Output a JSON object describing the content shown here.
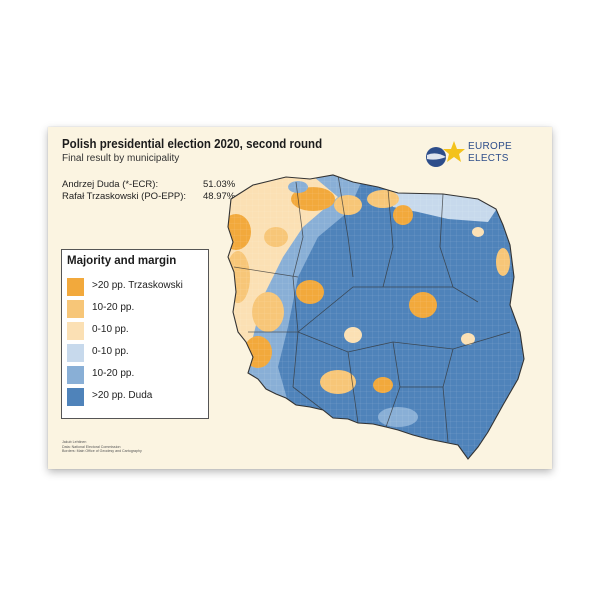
{
  "poster": {
    "title": "Polish presidential election 2020, second round",
    "subtitle": "Final result by municipality",
    "results": [
      {
        "candidate": "Andrzej Duda (*-ECR):",
        "share": "51.03%"
      },
      {
        "candidate": "Rafał Trzaskowski (PO-EPP):",
        "share": "48.97%"
      }
    ],
    "legend": {
      "title": "Majority and margin",
      "items": [
        {
          "label": ">20 pp. Trzaskowski",
          "color": "#f2a93c"
        },
        {
          "label": "10-20 pp.",
          "color": "#f7c678"
        },
        {
          "label": "0-10 pp.",
          "color": "#fbe0b4"
        },
        {
          "label": "0-10 pp.",
          "color": "#c7d9ec"
        },
        {
          "label": "10-20 pp.",
          "color": "#89afd6"
        },
        {
          "label": ">20 pp. Duda",
          "color": "#4f83ba"
        }
      ]
    },
    "logo": {
      "line1": "EUROPE",
      "line2": "ELECTS"
    },
    "credits": [
      "Jakub Lehtinen",
      "Data: National Electoral Commission",
      "Borders: Main Office of Geodesy and Cartography"
    ]
  },
  "colors": {
    "background": "#fbf4e1",
    "border": "#333333",
    "logo_blue": "#2d4d8a",
    "logo_star": "#f3c21b"
  }
}
